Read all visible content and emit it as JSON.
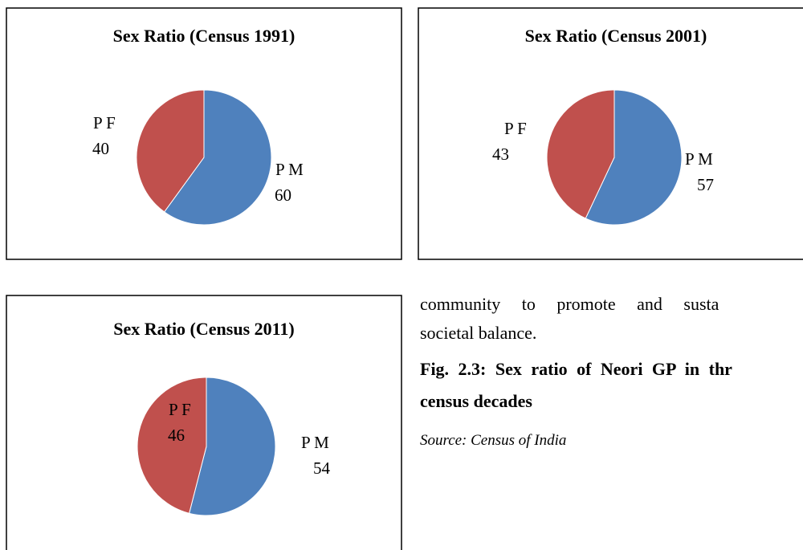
{
  "chart_data": [
    {
      "type": "pie",
      "title": "Sex Ratio (Census 1991)",
      "categories": [
        "P M",
        "P F"
      ],
      "values": [
        60,
        40
      ],
      "colors": [
        "#4f81bd",
        "#c0504d"
      ]
    },
    {
      "type": "pie",
      "title": "Sex Ratio (Census 2001)",
      "categories": [
        "P M",
        "P F"
      ],
      "values": [
        57,
        43
      ],
      "colors": [
        "#4f81bd",
        "#c0504d"
      ]
    },
    {
      "type": "pie",
      "title": "Sex Ratio (Census 2011)",
      "categories": [
        "P M",
        "P F"
      ],
      "values": [
        54,
        46
      ],
      "colors": [
        "#4f81bd",
        "#c0504d"
      ]
    }
  ],
  "text": {
    "paragraph": [
      "community to promote and susta",
      "societal balance."
    ],
    "caption": [
      "Fig. 2.3: Sex ratio of Neori GP in thr",
      "census decades"
    ],
    "source": "Source: Census of India"
  }
}
